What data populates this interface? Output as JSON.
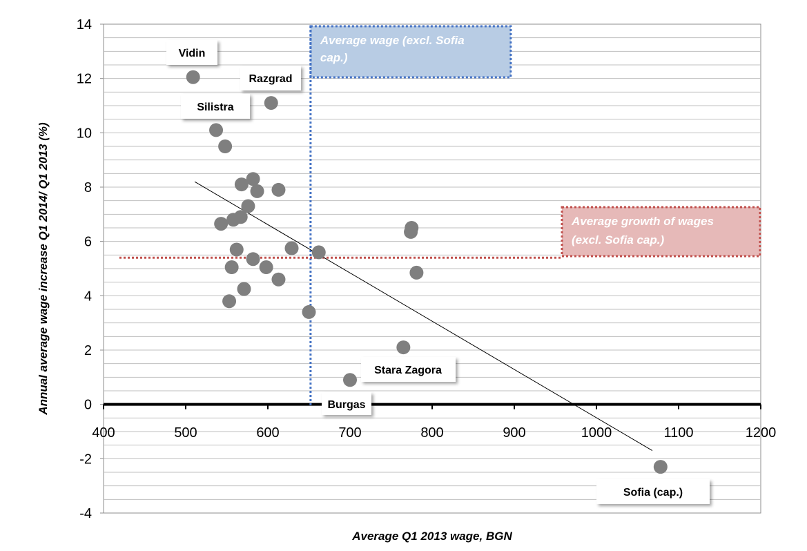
{
  "chart_data": {
    "type": "scatter",
    "xlabel": "Average Q1 2013 wage, BGN",
    "ylabel": "Annual average wage increase Q1 2014/ Q1 2013 (%)",
    "xlim": [
      400,
      1200
    ],
    "ylim": [
      -4,
      14
    ],
    "x_ticks": [
      "400",
      "500",
      "600",
      "700",
      "800",
      "900",
      "1000",
      "1100",
      "1200"
    ],
    "y_ticks": [
      "-4",
      "-2",
      "0",
      "2",
      "4",
      "6",
      "8",
      "10",
      "12",
      "14"
    ],
    "grid": "horizontal",
    "points": [
      {
        "x": 509,
        "y": 12.05
      },
      {
        "x": 604,
        "y": 11.1
      },
      {
        "x": 537,
        "y": 10.1
      },
      {
        "x": 548,
        "y": 9.5
      },
      {
        "x": 568,
        "y": 8.1
      },
      {
        "x": 582,
        "y": 8.3
      },
      {
        "x": 587,
        "y": 7.85
      },
      {
        "x": 613,
        "y": 7.9
      },
      {
        "x": 576,
        "y": 7.3
      },
      {
        "x": 567,
        "y": 6.9
      },
      {
        "x": 543,
        "y": 6.65
      },
      {
        "x": 558,
        "y": 6.8
      },
      {
        "x": 562,
        "y": 5.7
      },
      {
        "x": 629,
        "y": 5.75
      },
      {
        "x": 662,
        "y": 5.6
      },
      {
        "x": 556,
        "y": 5.05
      },
      {
        "x": 582,
        "y": 5.35
      },
      {
        "x": 598,
        "y": 5.05
      },
      {
        "x": 613,
        "y": 4.6
      },
      {
        "x": 571,
        "y": 4.25
      },
      {
        "x": 553,
        "y": 3.8
      },
      {
        "x": 650,
        "y": 3.4
      },
      {
        "x": 774,
        "y": 6.35
      },
      {
        "x": 775,
        "y": 6.5
      },
      {
        "x": 781,
        "y": 4.85
      },
      {
        "x": 765,
        "y": 2.1
      },
      {
        "x": 700,
        "y": 0.9
      },
      {
        "x": 1078,
        "y": -2.3
      }
    ],
    "trendline": {
      "x": [
        511,
        1068
      ],
      "y": [
        8.2,
        -1.7
      ]
    },
    "reference_lines": {
      "average_wage_x": 652,
      "average_growth_y": 5.4
    },
    "reference_labels": {
      "average_wage": "Average wage (excl. Sofia cap.)",
      "average_growth": "Average growth of wages (excl. Sofia cap.)"
    },
    "point_labels": {
      "vidin": "Vidin",
      "razgrad": "Razgrad",
      "silistra": "Silistra",
      "stara_zagora": "Stara Zagora",
      "burgas": "Burgas",
      "sofia": "Sofia (cap.)"
    },
    "colors": {
      "points": "#7f7f7f",
      "trendline": "#000000",
      "avg_wage_line": "#4472c4",
      "avg_wage_box": "#b8cce4",
      "avg_growth_line": "#c0504d",
      "avg_growth_box": "#e6b9b8",
      "grid": "#bfbfbf"
    }
  }
}
